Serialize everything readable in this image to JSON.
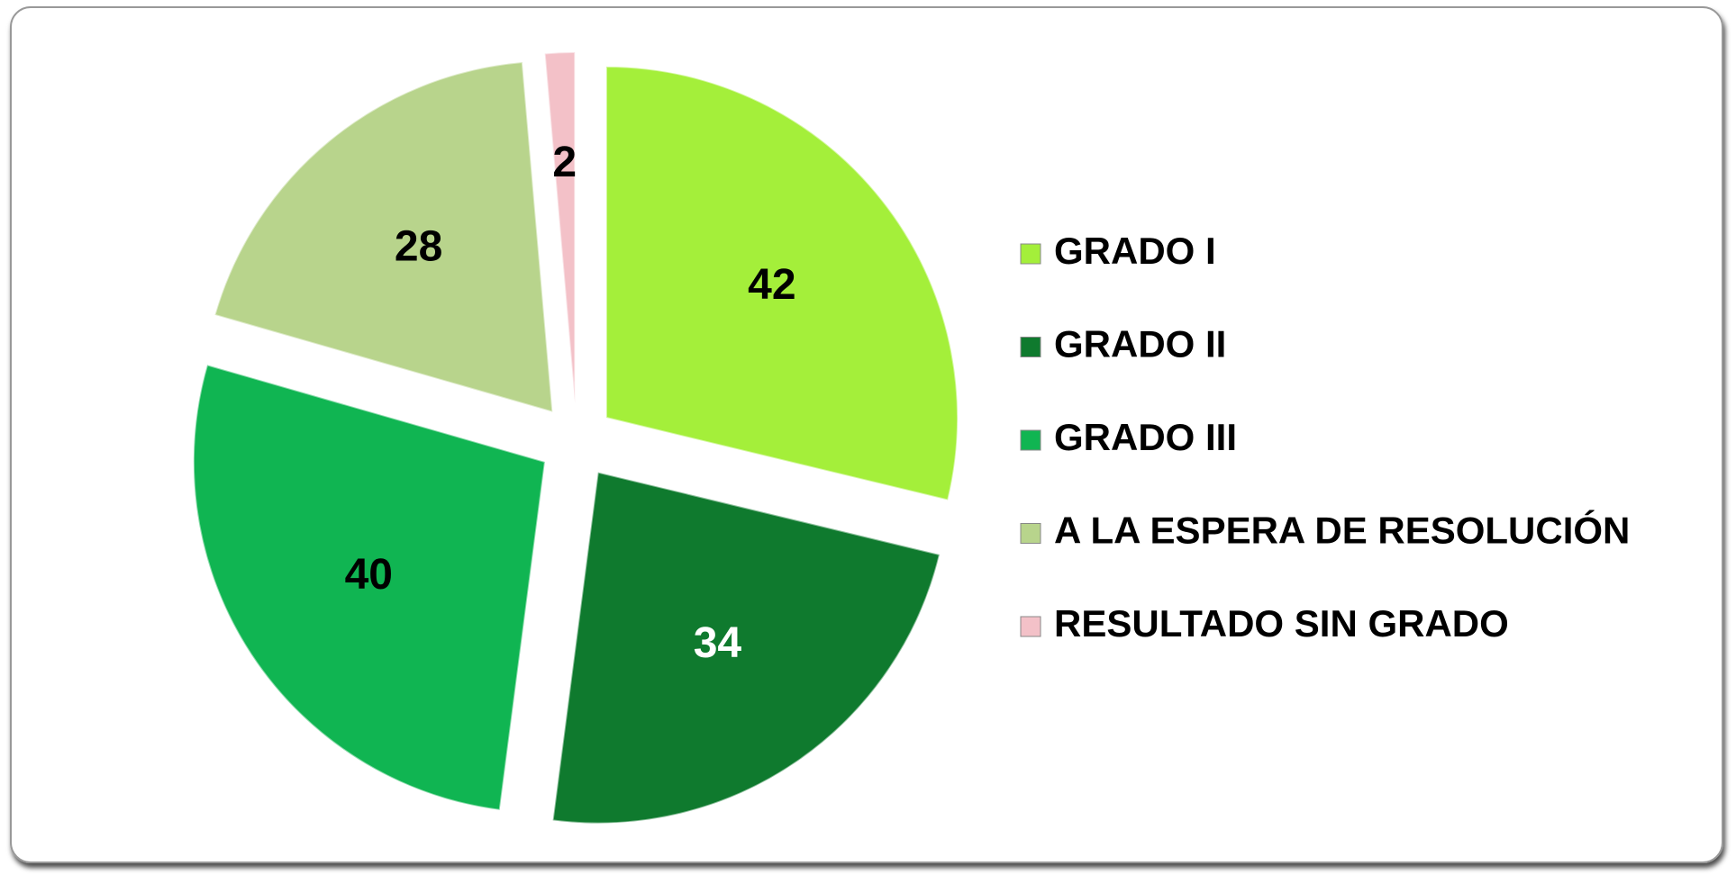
{
  "chart_data": {
    "type": "pie",
    "categories": [
      "GRADO I",
      "GRADO II",
      "GRADO III",
      "A LA ESPERA DE RESOLUCIÓN",
      "RESULTADO SIN GRADO"
    ],
    "values": [
      42,
      34,
      40,
      28,
      2
    ],
    "colors": [
      "#a4ef3a",
      "#0f7a2e",
      "#10b552",
      "#b8d48c",
      "#f3c1c8"
    ],
    "legend": "right"
  }
}
